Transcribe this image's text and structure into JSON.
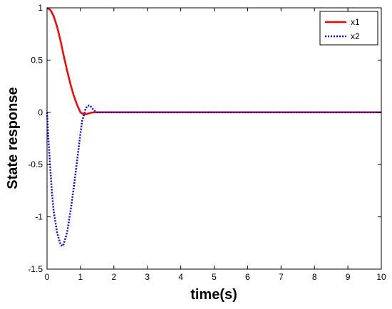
{
  "chart_data": {
    "type": "line",
    "title": "",
    "xlabel": "time(s)",
    "ylabel": "State response",
    "xlim": [
      0,
      10
    ],
    "ylim": [
      -1.5,
      1
    ],
    "xticks": [
      "0",
      "1",
      "2",
      "3",
      "4",
      "5",
      "6",
      "7",
      "8",
      "9",
      "10"
    ],
    "yticks": [
      "1",
      "0.5",
      "0",
      "-0.5",
      "-1",
      "-1.5"
    ],
    "grid": false,
    "legend_position": "top-right",
    "series": [
      {
        "name": "x1",
        "color": "#ff0000",
        "style": "solid",
        "x": [
          0,
          0.1,
          0.2,
          0.3,
          0.4,
          0.5,
          0.6,
          0.7,
          0.8,
          0.9,
          1.0,
          1.1,
          1.2,
          1.3,
          1.4,
          1.5,
          2,
          3,
          4,
          5,
          6,
          7,
          8,
          9,
          10
        ],
        "y": [
          1.0,
          0.98,
          0.92,
          0.82,
          0.69,
          0.54,
          0.4,
          0.27,
          0.16,
          0.07,
          0.0,
          -0.02,
          -0.015,
          -0.005,
          0.0,
          0.0,
          0,
          0,
          0,
          0,
          0,
          0,
          0,
          0,
          0
        ]
      },
      {
        "name": "x2",
        "color": "#0000ff",
        "style": "dotted",
        "x": [
          0,
          0.05,
          0.1,
          0.15,
          0.2,
          0.3,
          0.4,
          0.45,
          0.5,
          0.6,
          0.7,
          0.8,
          0.9,
          1.0,
          1.05,
          1.1,
          1.15,
          1.2,
          1.25,
          1.3,
          1.35,
          1.4,
          1.45,
          1.5,
          1.6,
          2,
          3,
          4,
          5,
          6,
          7,
          8,
          9,
          10
        ],
        "y": [
          0.0,
          -0.3,
          -0.55,
          -0.78,
          -0.95,
          -1.15,
          -1.26,
          -1.28,
          -1.26,
          -1.15,
          -0.95,
          -0.72,
          -0.46,
          -0.2,
          -0.08,
          -0.03,
          0.03,
          0.06,
          0.065,
          0.06,
          0.04,
          0.02,
          0.008,
          0.0,
          0.0,
          0,
          0,
          0,
          0,
          0,
          0,
          0,
          0,
          0
        ]
      }
    ]
  }
}
